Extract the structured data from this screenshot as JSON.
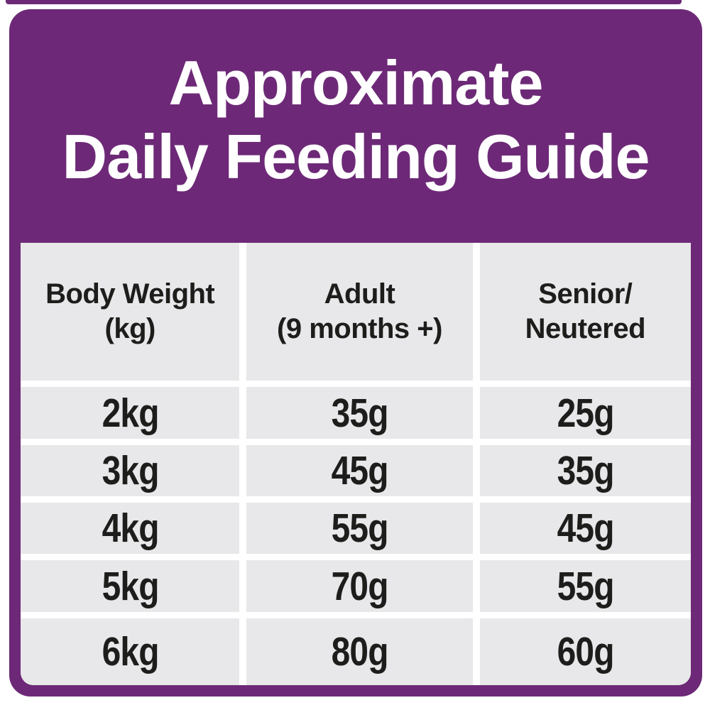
{
  "header": {
    "title_line1": "Approximate",
    "title_line2": "Daily Feeding Guide"
  },
  "table": {
    "columns": [
      {
        "label_line1": "Body Weight",
        "label_line2": "(kg)"
      },
      {
        "label_line1": "Adult",
        "label_line2": "(9 months +)"
      },
      {
        "label_line1": "Senior/",
        "label_line2": "Neutered"
      }
    ],
    "rows": [
      [
        "2kg",
        "35g",
        "25g"
      ],
      [
        "3kg",
        "45g",
        "35g"
      ],
      [
        "4kg",
        "55g",
        "45g"
      ],
      [
        "5kg",
        "70g",
        "55g"
      ],
      [
        "6kg",
        "80g",
        "60g"
      ]
    ]
  },
  "colors": {
    "purple": "#6d2977",
    "cell_gray": "#e8e7e9",
    "text_dark": "#1d1d1b",
    "title_text": "#ffffff",
    "background": "#ffffff"
  },
  "chart_data": {
    "type": "table",
    "title": "Approximate Daily Feeding Guide",
    "columns": [
      "Body Weight (kg)",
      "Adult (9 months +)",
      "Senior/Neutered"
    ],
    "rows": [
      [
        "2kg",
        "35g",
        "25g"
      ],
      [
        "3kg",
        "45g",
        "35g"
      ],
      [
        "4kg",
        "55g",
        "45g"
      ],
      [
        "5kg",
        "70g",
        "55g"
      ],
      [
        "6kg",
        "80g",
        "60g"
      ]
    ],
    "units": {
      "body_weight": "kg",
      "portions": "g"
    }
  }
}
